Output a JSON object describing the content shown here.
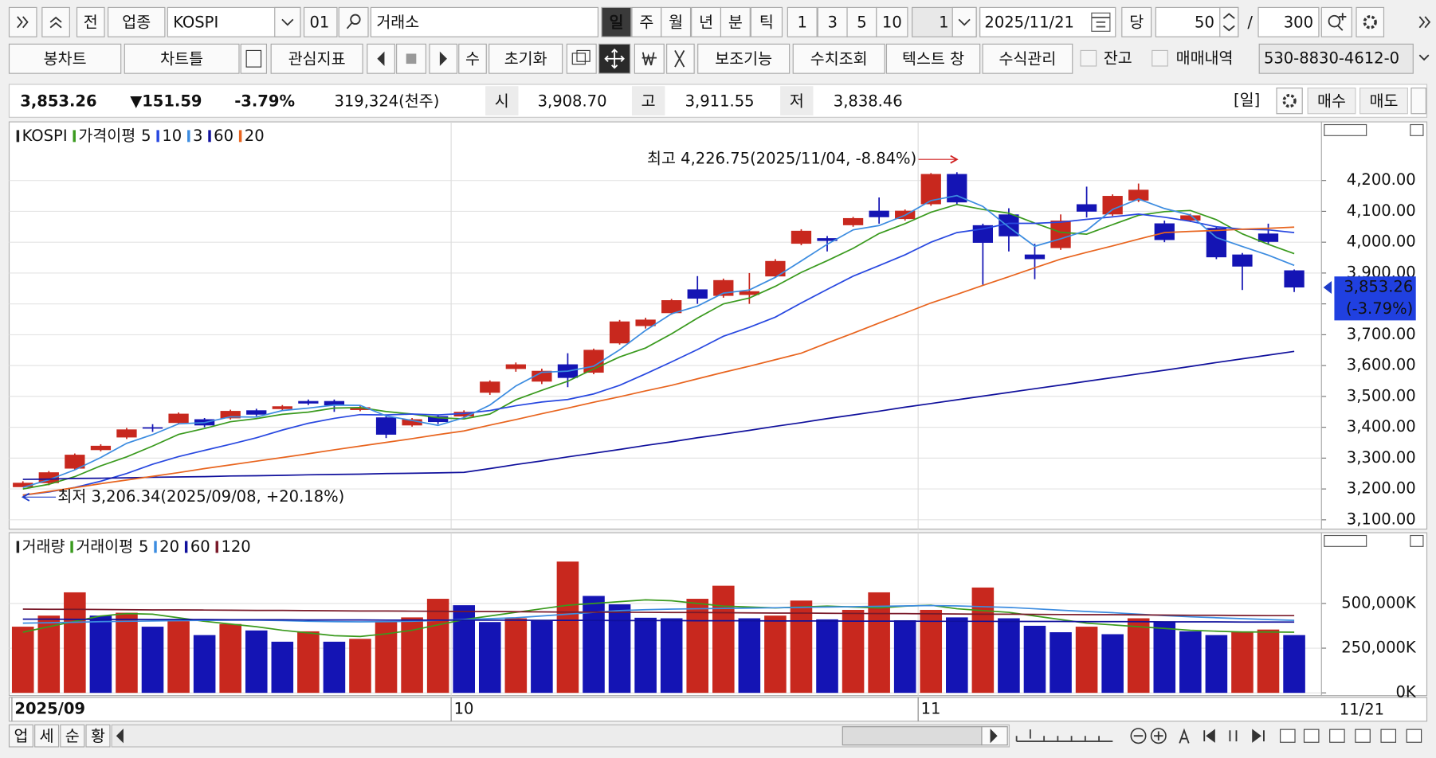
{
  "toolbar": {
    "row1": [
      "전",
      "업종",
      "KOSPI",
      "01",
      "거래소",
      "일",
      "주",
      "월",
      "년",
      "분",
      "틱",
      "1",
      "3",
      "5",
      "10",
      "1",
      "2025/11/21",
      "당",
      "50",
      "/",
      "300"
    ],
    "row2": [
      "봉차트",
      "차트틀",
      "관심지표",
      "수",
      "초기화",
      "보조기능",
      "수치조회",
      "텍스트 창",
      "수식관리",
      "잔고",
      "매매내역",
      "530-8830-4612-0"
    ]
  },
  "quote": {
    "price": "3,853.26",
    "change": "▼151.59",
    "change_pct": "-3.79%",
    "volume": "319,324(천주)",
    "open_label": "시",
    "open": "3,908.70",
    "high_label": "고",
    "high": "3,911.55",
    "low_label": "저",
    "low": "3,838.46",
    "period": "[일]",
    "buy": "매수",
    "sell": "매도"
  },
  "chart_data": [
    {
      "type": "candlestick",
      "title": "KOSPI",
      "ma_label": "가격이평",
      "categories": [
        "2025/09",
        null,
        null,
        null,
        null,
        null,
        null,
        null,
        null,
        null,
        null,
        null,
        null,
        null,
        null,
        null,
        null,
        "10",
        null,
        null,
        null,
        null,
        null,
        null,
        null,
        null,
        null,
        null,
        null,
        null,
        null,
        null,
        null,
        null,
        null,
        "11",
        null,
        null,
        null,
        null,
        null,
        null,
        null,
        null,
        null,
        null,
        null,
        null,
        null,
        null
      ],
      "open": [
        3206,
        3219,
        3266,
        3326,
        3367,
        3400,
        3414,
        3426,
        3429,
        3455,
        3459,
        3485,
        3485,
        3456,
        3432,
        3406,
        3436,
        3435,
        3512,
        3589,
        3548,
        3604,
        3577,
        3672,
        3728,
        3770,
        3847,
        3826,
        3829,
        3889,
        3995,
        4013,
        4055,
        4102,
        4075,
        4123,
        4221,
        4055,
        4090,
        3960,
        3981,
        4123,
        4090,
        4135,
        4061,
        4070,
        4046,
        3960,
        4028,
        3908.7
      ],
      "high": [
        3225,
        3258,
        3315,
        3345,
        3398,
        3410,
        3448,
        3430,
        3457,
        3460,
        3472,
        3490,
        3490,
        3470,
        3440,
        3430,
        3440,
        3455,
        3552,
        3610,
        3590,
        3640,
        3655,
        3748,
        3755,
        3816,
        3890,
        3882,
        3900,
        3945,
        4042,
        4020,
        4082,
        4145,
        4106,
        4224,
        4226.75,
        4060,
        4110,
        3995,
        4090,
        4180,
        4155,
        4190,
        4070,
        4092,
        4050,
        3965,
        4060,
        3911.55
      ],
      "low": [
        3206.34,
        3212,
        3262,
        3322,
        3362,
        3385,
        3410,
        3400,
        3425,
        3436,
        3455,
        3472,
        3450,
        3452,
        3365,
        3402,
        3410,
        3430,
        3505,
        3580,
        3540,
        3530,
        3572,
        3668,
        3720,
        3765,
        3800,
        3820,
        3800,
        3885,
        3990,
        3970,
        4050,
        4060,
        4070,
        4118,
        4120,
        3862,
        3970,
        3880,
        3975,
        4080,
        4085,
        4130,
        4000,
        4065,
        3945,
        3845,
        3995,
        3838.46
      ],
      "close": [
        3220,
        3254,
        3311,
        3340,
        3393,
        3396,
        3444,
        3406,
        3453,
        3441,
        3468,
        3477,
        3471,
        3465,
        3376,
        3426,
        3417,
        3450,
        3548,
        3604,
        3583,
        3560,
        3651,
        3743,
        3749,
        3812,
        3817,
        3877,
        3841,
        3939,
        4037,
        4004,
        4078,
        4081,
        4102,
        4221,
        4129,
        3998,
        4019,
        3945,
        4070,
        4099,
        4150,
        4170,
        4007,
        4087,
        3951,
        3921,
        4001,
        3853.26
      ],
      "up_color": "#c8281e",
      "down_color": "#1414b4",
      "series": [
        {
          "name": "5",
          "color": "#3a9a1e",
          "values": [
            3200,
            3215,
            3240,
            3275,
            3304,
            3339,
            3377,
            3396,
            3418,
            3428,
            3442,
            3449,
            3462,
            3464,
            3451,
            3443,
            3431,
            3427,
            3443,
            3489,
            3520,
            3549,
            3589,
            3628,
            3657,
            3703,
            3754,
            3800,
            3819,
            3857,
            3902,
            3940,
            3980,
            4028,
            4060,
            4097,
            4122,
            4106,
            4094,
            4062,
            4032,
            4026,
            4057,
            4087,
            4099,
            4103,
            4073,
            4027,
            3993,
            3963
          ]
        },
        {
          "name": "10",
          "color": "#2848e0",
          "values": [
            3180,
            3190,
            3205,
            3225,
            3250,
            3280,
            3305,
            3325,
            3345,
            3366,
            3391,
            3413,
            3429,
            3441,
            3440,
            3443,
            3440,
            3445,
            3454,
            3470,
            3482,
            3490,
            3508,
            3536,
            3573,
            3612,
            3652,
            3695,
            3724,
            3757,
            3803,
            3847,
            3890,
            3924,
            3959,
            4000,
            4031,
            4043,
            4061,
            4061,
            4065,
            4074,
            4082,
            4091,
            4081,
            4068,
            4050,
            4042,
            4040,
            4031
          ]
        },
        {
          "name": "3",
          "color": "#3c8ce0",
          "values": [
            3205,
            3230,
            3262,
            3302,
            3348,
            3376,
            3411,
            3415,
            3434,
            3433,
            3454,
            3462,
            3472,
            3471,
            3437,
            3422,
            3406,
            3431,
            3472,
            3534,
            3578,
            3582,
            3598,
            3651,
            3714,
            3768,
            3793,
            3835,
            3845,
            3886,
            3939,
            3993,
            4040,
            4054,
            4087,
            4135,
            4151,
            4116,
            4049,
            3987,
            4011,
            4038,
            4106,
            4140,
            4109,
            4088,
            4015,
            3986,
            3958,
            3925
          ]
        },
        {
          "name": "60",
          "color": "#10109c",
          "values": [
            3231,
            3232,
            3234,
            3235,
            3236,
            3238,
            3239,
            3240,
            3242,
            3243,
            3244,
            3246,
            3247,
            3248,
            3250,
            3251,
            3252,
            3254,
            3266,
            3279,
            3291,
            3304,
            3316,
            3328,
            3341,
            3353,
            3366,
            3378,
            3390,
            3403,
            3415,
            3428,
            3440,
            3452,
            3465,
            3477,
            3489,
            3501,
            3513,
            3525,
            3537,
            3549,
            3561,
            3573,
            3585,
            3597,
            3610,
            3622,
            3634,
            3646
          ]
        },
        {
          "name": "20",
          "color": "#e8641e",
          "values": [
            3180,
            3192,
            3204,
            3217,
            3229,
            3241,
            3253,
            3266,
            3278,
            3290,
            3302,
            3314,
            3327,
            3339,
            3351,
            3363,
            3376,
            3388,
            3407,
            3425,
            3444,
            3462,
            3481,
            3499,
            3518,
            3536,
            3557,
            3578,
            3598,
            3619,
            3640,
            3673,
            3705,
            3738,
            3770,
            3803,
            3831,
            3860,
            3888,
            3917,
            3945,
            3967,
            3988,
            4010,
            4031,
            4035,
            4038,
            4042,
            4045,
            4049
          ]
        }
      ],
      "ylim": [
        3070,
        4390
      ],
      "yticks": [
        {
          "value": 3100,
          "label": "3,100.00"
        },
        {
          "value": 3200,
          "label": "3,200.00"
        },
        {
          "value": 3300,
          "label": "3,300.00"
        },
        {
          "value": 3400,
          "label": "3,400.00"
        },
        {
          "value": 3500,
          "label": "3,500.00"
        },
        {
          "value": 3600,
          "label": "3,600.00"
        },
        {
          "value": 3700,
          "label": "3,700.00"
        },
        {
          "value": 3800,
          "label": "3,800.00"
        },
        {
          "value": 3900,
          "label": "3,900.00"
        },
        {
          "value": 4000,
          "label": "4,000.00"
        },
        {
          "value": 4100,
          "label": "4,100.00"
        },
        {
          "value": 4200,
          "label": "4,200.00"
        }
      ],
      "grid": true,
      "current_change_label": "(-3.79%)",
      "high_annotation": "최고 4,226.75(2025/11/04, -8.84%)",
      "low_annotation": "최저 3,206.34(2025/09/08, +20.18%)",
      "last_date_label": "11/21"
    },
    {
      "type": "bar",
      "title": "거래량",
      "ma_label": "거래이평",
      "values": [
        370000,
        432000,
        562000,
        432000,
        448000,
        370000,
        401000,
        323000,
        385000,
        349000,
        286000,
        344000,
        286000,
        302000,
        401000,
        422000,
        526000,
        490000,
        396000,
        417000,
        406000,
        734000,
        542000,
        495000,
        420000,
        417000,
        526000,
        599000,
        417000,
        432000,
        516000,
        411000,
        464000,
        562000,
        406000,
        464000,
        422000,
        589000,
        417000,
        375000,
        339000,
        370000,
        328000,
        417000,
        396000,
        344000,
        323000,
        344000,
        354000,
        323000
      ],
      "up_color": "#c8281e",
      "down_color": "#1414b4",
      "series": [
        {
          "name": "5",
          "color": "#3a9a1e",
          "values": [
            339000,
            370000,
            400000,
            430000,
            443000,
            440000,
            420000,
            400000,
            385000,
            370000,
            350000,
            335000,
            320000,
            315000,
            330000,
            350000,
            380000,
            410000,
            430000,
            450000,
            470000,
            490000,
            500000,
            510000,
            520000,
            515000,
            500000,
            485000,
            480000,
            475000,
            480000,
            485000,
            480000,
            475000,
            485000,
            490000,
            470000,
            460000,
            450000,
            430000,
            410000,
            390000,
            380000,
            370000,
            360000,
            350000,
            345000,
            340000,
            340000,
            339000
          ]
        },
        {
          "name": "20",
          "color": "#3c8ce0",
          "values": [
            390000,
            392000,
            395000,
            398000,
            400000,
            402000,
            404000,
            405000,
            406000,
            406000,
            404000,
            400000,
            398000,
            397000,
            398000,
            400000,
            405000,
            410000,
            415000,
            420000,
            430000,
            440000,
            450000,
            460000,
            465000,
            468000,
            470000,
            472000,
            474000,
            476000,
            478000,
            480000,
            482000,
            484000,
            486000,
            488000,
            486000,
            482000,
            478000,
            470000,
            462000,
            455000,
            448000,
            440000,
            432000,
            425000,
            420000,
            415000,
            410000,
            405000
          ]
        },
        {
          "name": "60",
          "color": "#10109c",
          "values": [
            412000,
            412000,
            411000,
            411000,
            411000,
            410000,
            410000,
            410000,
            409000,
            409000,
            409000,
            408000,
            408000,
            408000,
            407000,
            407000,
            407000,
            406000,
            406000,
            406000,
            405000,
            405000,
            405000,
            404000,
            404000,
            404000,
            403000,
            403000,
            403000,
            402000,
            402000,
            402000,
            401000,
            401000,
            401000,
            400000,
            400000,
            400000,
            399000,
            399000,
            399000,
            398000,
            398000,
            398000,
            397000,
            397000,
            397000,
            396000,
            396000,
            396000
          ]
        },
        {
          "name": "120",
          "color": "#7a1a2a",
          "values": [
            468000,
            467000,
            467000,
            466000,
            465000,
            464000,
            464000,
            463000,
            462000,
            461000,
            461000,
            460000,
            459000,
            458000,
            458000,
            457000,
            456000,
            455000,
            455000,
            454000,
            453000,
            452000,
            452000,
            451000,
            450000,
            449000,
            449000,
            448000,
            447000,
            446000,
            446000,
            445000,
            444000,
            443000,
            443000,
            442000,
            441000,
            440000,
            440000,
            439000,
            438000,
            437000,
            437000,
            436000,
            435000,
            434000,
            434000,
            433000,
            432000,
            432000
          ]
        }
      ],
      "ylim": [
        0,
        880000
      ],
      "yticks": [
        {
          "value": 0,
          "label": "0K"
        },
        {
          "value": 250000,
          "label": "250,000K"
        },
        {
          "value": 500000,
          "label": "500,000K"
        }
      ],
      "grid": true
    }
  ],
  "footer": {
    "tabs": [
      "업",
      "세",
      "순",
      "황"
    ]
  }
}
